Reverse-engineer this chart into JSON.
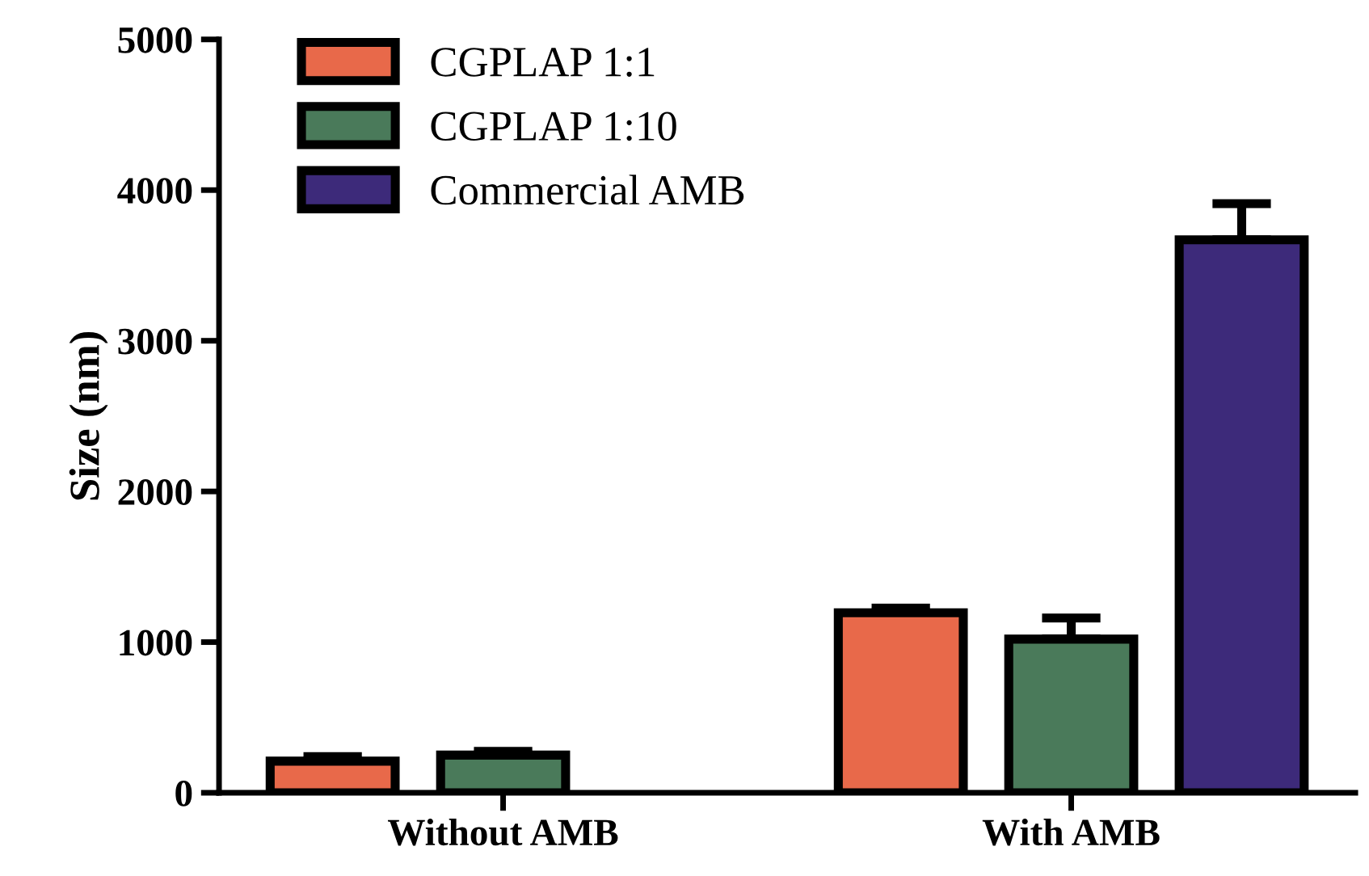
{
  "chart_data": {
    "type": "bar",
    "ylabel": "Size (nm)",
    "categories": [
      "Without AMB",
      "With AMB"
    ],
    "series": [
      {
        "name": "CGPLAP 1:1",
        "color": "#e8694a",
        "values": [
          210,
          1195
        ],
        "errors": [
          30,
          30
        ]
      },
      {
        "name": "CGPLAP 1:10",
        "color": "#4a7a5a",
        "values": [
          250,
          1020
        ],
        "errors": [
          25,
          140
        ]
      },
      {
        "name": "Commercial AMB",
        "color": "#3d2a7a",
        "values": [
          null,
          3670
        ],
        "errors": [
          null,
          240
        ]
      }
    ],
    "ylim": [
      0,
      5000
    ],
    "yticks": [
      0,
      1000,
      2000,
      3000,
      4000,
      5000
    ],
    "grid": false,
    "legend": "top left"
  }
}
